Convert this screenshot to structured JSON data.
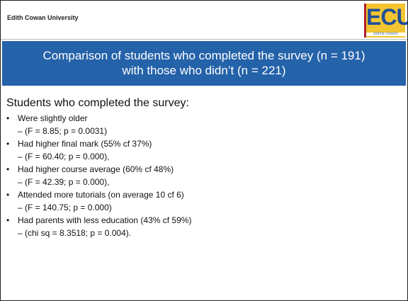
{
  "header": {
    "university": "Edith Cowan University",
    "logo": {
      "letters": "ECU",
      "caption": "EDITH COWAN"
    }
  },
  "title": [
    "Comparison of students who completed the survey (n = 191)",
    "with those who didn’t (n = 221)"
  ],
  "body": {
    "heading": "Students who completed the survey:",
    "bullets": [
      {
        "text": "Were slightly older",
        "sub": "–  (F = 8.85; p = 0.0031)"
      },
      {
        "text": "Had higher final mark (55% cf 37%)",
        "sub": "–  (F = 60.40; p = 0.000),"
      },
      {
        "text": "Had higher course average (60% cf 48%)",
        "sub": "–  (F = 42.39; p = 0.000),"
      },
      {
        "text": "Attended more tutorials (on average 10 cf 6)",
        "sub": "–  (F = 140.75; p = 0.000)"
      },
      {
        "text": "Had parents with less education (43% cf 59%)",
        "sub": "–  (chi sq = 8.3518; p = 0.004)."
      }
    ]
  }
}
